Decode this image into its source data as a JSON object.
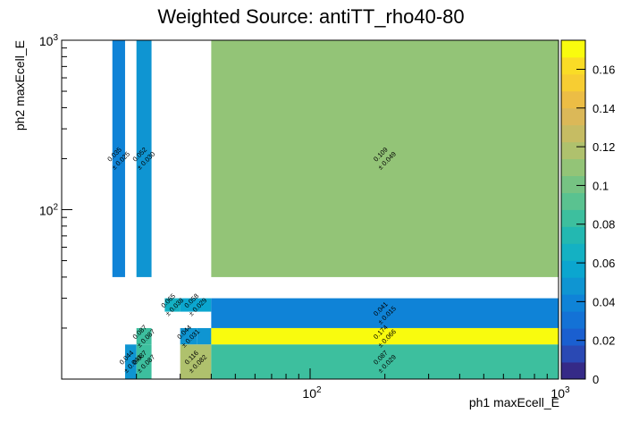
{
  "chart_data": {
    "type": "heatmap",
    "title": "Weighted Source: antiTT_rho40-80",
    "xlabel": "ph1 maxEcell_E",
    "ylabel": "ph2 maxEcell_E",
    "x_scale": "log",
    "y_scale": "log",
    "xlim": [
      10,
      1000
    ],
    "ylim": [
      10,
      1000
    ],
    "x_tick_labels": [
      {
        "exp": "2",
        "value": 100
      },
      {
        "exp": "3",
        "value": 1000
      }
    ],
    "y_tick_labels": [
      {
        "exp": "2",
        "value": 100
      },
      {
        "exp": "3",
        "value": 1000
      }
    ],
    "zlim": [
      0,
      0.175
    ],
    "z_tick_labels": [
      "0",
      "0.02",
      "0.04",
      "0.06",
      "0.08",
      "0.1",
      "0.12",
      "0.14",
      "0.16"
    ],
    "colorscale": [
      "#352a87",
      "#2a49b4",
      "#1a5fd0",
      "#1372d6",
      "#0f83d7",
      "#0f95d2",
      "#0ba6cf",
      "#14b1c3",
      "#23b8b1",
      "#3dbf9e",
      "#5ac290",
      "#76c383",
      "#93c477",
      "#afc16d",
      "#c6bc63",
      "#dbb858",
      "#ecbd45",
      "#f7cd32",
      "#fadc26",
      "#f9fb0e"
    ],
    "cells": [
      {
        "x0": 16,
        "x1": 18,
        "y0": 40,
        "y1": 1000,
        "value": 0.035,
        "error": 0.025,
        "label": "0.035",
        "err_label": "± 0.025"
      },
      {
        "x0": 20,
        "x1": 23,
        "y0": 40,
        "y1": 1000,
        "value": 0.052,
        "error": 0.03,
        "label": "0.052",
        "err_label": "± 0.030"
      },
      {
        "x0": 40,
        "x1": 1000,
        "y0": 40,
        "y1": 1000,
        "value": 0.109,
        "error": 0.049,
        "label": "0.109",
        "err_label": "± 0.049"
      },
      {
        "x0": 26,
        "x1": 30,
        "y0": 25,
        "y1": 30,
        "value": 0.065,
        "error": 0.038,
        "label": "0.065",
        "err_label": "± 0.038"
      },
      {
        "x0": 30,
        "x1": 40,
        "y0": 25,
        "y1": 30,
        "value": 0.058,
        "error": 0.029,
        "label": "0.058",
        "err_label": "± 0.029"
      },
      {
        "x0": 40,
        "x1": 1000,
        "y0": 20,
        "y1": 30,
        "value": 0.041,
        "error": 0.015,
        "label": "0.041",
        "err_label": "± 0.015"
      },
      {
        "x0": 20,
        "x1": 23,
        "y0": 16,
        "y1": 20,
        "value": 0.087,
        "error": 0.087,
        "label": "0.087",
        "err_label": "± 0.087"
      },
      {
        "x0": 30,
        "x1": 35,
        "y0": 16,
        "y1": 20,
        "value": 0.044,
        "error": 0.031,
        "label": "0.044",
        "err_label": "± 0.031"
      },
      {
        "x0": 35,
        "x1": 40,
        "y0": 16,
        "y1": 20,
        "value": 0.044,
        "error": 0.031,
        "label": "",
        "err_label": ""
      },
      {
        "x0": 40,
        "x1": 1000,
        "y0": 16,
        "y1": 20,
        "value": 0.174,
        "error": 0.066,
        "label": "0.174",
        "err_label": "± 0.066"
      },
      {
        "x0": 18,
        "x1": 20,
        "y0": 10,
        "y1": 16,
        "value": 0.044,
        "error": 0.044,
        "label": "0.044",
        "err_label": "± 0.044"
      },
      {
        "x0": 20,
        "x1": 23,
        "y0": 10,
        "y1": 16,
        "value": 0.087,
        "error": 0.087,
        "label": "0.087",
        "err_label": "± 0.087"
      },
      {
        "x0": 30,
        "x1": 40,
        "y0": 10,
        "y1": 16,
        "value": 0.116,
        "error": 0.082,
        "label": "0.116",
        "err_label": "± 0.082"
      },
      {
        "x0": 40,
        "x1": 1000,
        "y0": 10,
        "y1": 16,
        "value": 0.087,
        "error": 0.029,
        "label": "0.087",
        "err_label": "± 0.029"
      }
    ]
  }
}
